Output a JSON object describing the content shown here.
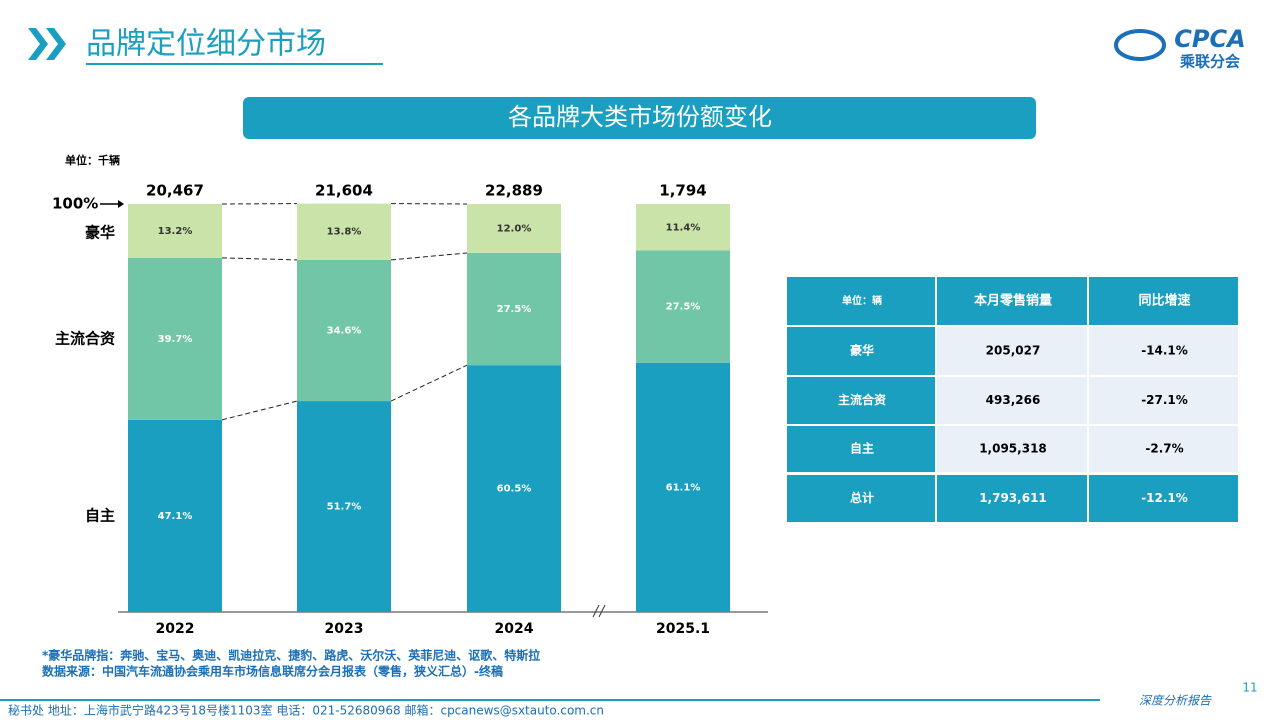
{
  "header": {
    "title": "品牌定位细分市场",
    "logo": "CPCA",
    "logo_sub": "乘联分会"
  },
  "banner": "各品牌大类市场份额变化",
  "chart_data": {
    "type": "bar",
    "stacked": true,
    "unit": "单位：千辆",
    "categories": [
      "2022",
      "2023",
      "2024",
      "2025.1"
    ],
    "series": [
      {
        "name": "自主",
        "color": "#1a9fc0",
        "values": [
          47.1,
          51.7,
          60.5,
          61.1
        ],
        "value_labels": [
          "47.1%",
          "51.7%",
          "60.5%",
          "61.1%"
        ]
      },
      {
        "name": "主流合资",
        "color": "#72c6a8",
        "values": [
          39.7,
          34.6,
          27.5,
          27.5
        ],
        "value_labels": [
          "39.7%",
          "34.6%",
          "27.5%",
          "27.5%"
        ]
      },
      {
        "name": "豪华",
        "color": "#c9e3a9",
        "values": [
          13.2,
          13.8,
          12.0,
          11.4
        ],
        "value_labels": [
          "13.2%",
          "13.8%",
          "12.0%",
          "11.4%"
        ]
      }
    ],
    "totals": {
      "values": [
        20467,
        21604,
        22889,
        1794
      ],
      "value_labels": [
        "20,467",
        "21,604",
        "22,889",
        "1,794"
      ]
    },
    "ylim": [
      0,
      100
    ],
    "top_annotation": {
      "value": 100,
      "label": "100%"
    }
  },
  "table": {
    "header": [
      "单位：辆",
      "本月零售销量",
      "同比增速"
    ],
    "rows": [
      [
        "豪华",
        "205,027",
        "-14.1%"
      ],
      [
        "主流合资",
        "493,266",
        "-27.1%"
      ],
      [
        "自主",
        "1,095,318",
        "-2.7%"
      ],
      [
        "总计",
        "1,793,611",
        "-12.1%"
      ]
    ]
  },
  "notes": [
    "*豪华品牌指：奔驰、宝马、奥迪、凯迪拉克、捷豹、路虎、沃尔沃、英菲尼迪、讴歌、特斯拉",
    "数据来源：中国汽车流通协会乘用车市场信息联席分会月报表（零售，狭义汇总）-终稿"
  ],
  "footer": {
    "address": "秘书处  地址：上海市武宁路423号18号楼1103室  电话：021-52680968  邮箱：cpcanews@sxtauto.com.cn",
    "tag": "深度分析报告",
    "page": "11"
  }
}
